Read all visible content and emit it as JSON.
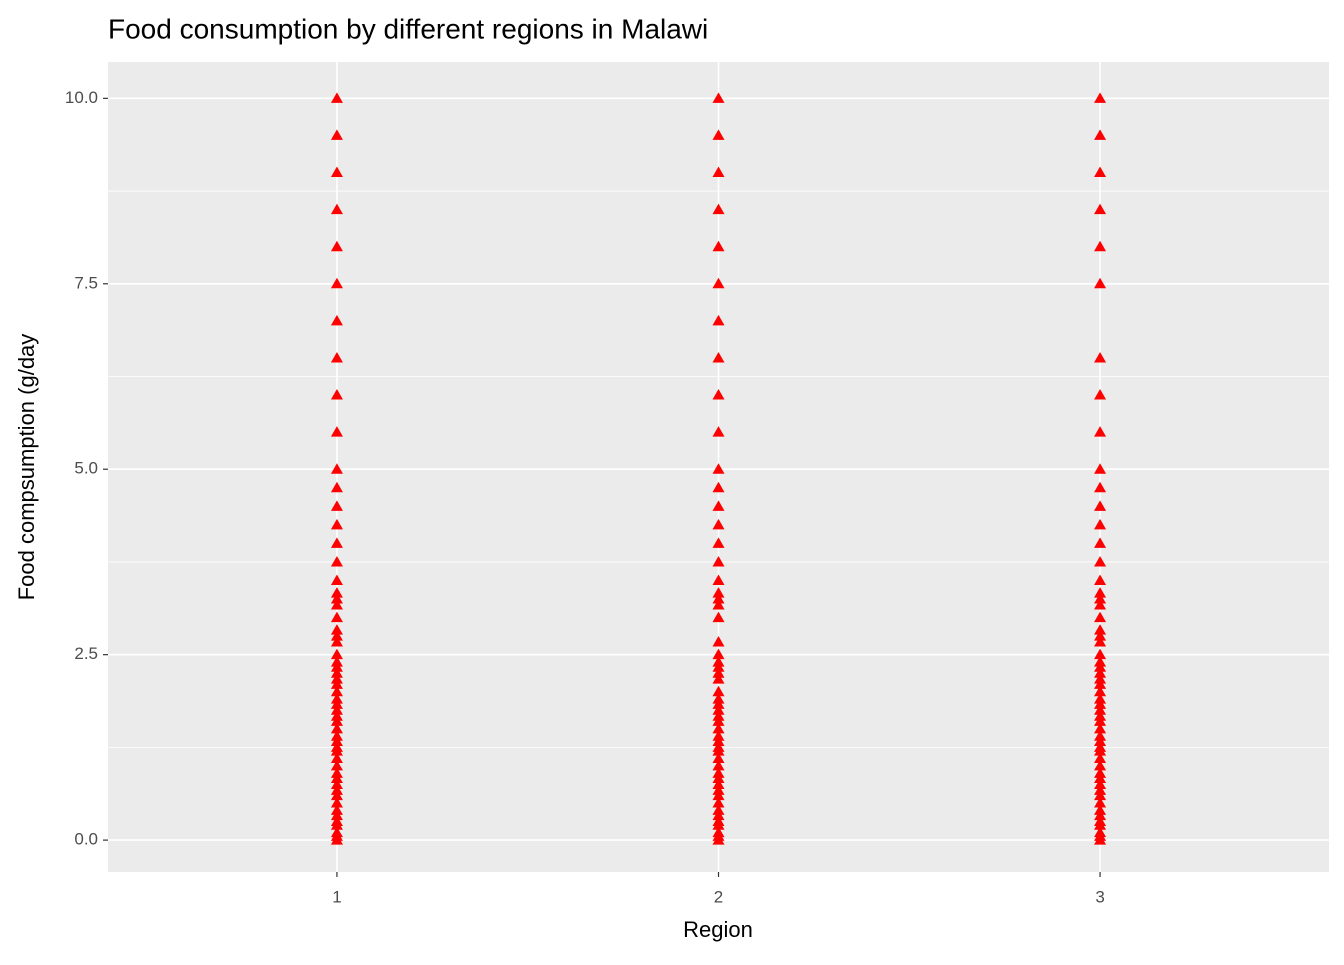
{
  "chart_data": {
    "type": "scatter",
    "title": "Food consumption by different regions in Malawi",
    "x_label": "Region",
    "y_label": "Food compsumption (g/day",
    "xlim": [
      0.4,
      3.6
    ],
    "xticks": [
      1,
      2,
      3
    ],
    "ylim": [
      -0.43,
      10.49
    ],
    "yticks": [
      {
        "value": 0,
        "label": "0.0"
      },
      {
        "value": 2.5,
        "label": "2.5"
      },
      {
        "value": 5,
        "label": "5.0"
      },
      {
        "value": 7.5,
        "label": "7.5"
      },
      {
        "value": 10,
        "label": "10.0"
      }
    ],
    "grid": true,
    "minor_grid": true,
    "marker": "triangle",
    "series": [
      {
        "color": "#ff0000",
        "x": [
          1,
          1,
          1,
          1,
          1,
          1,
          1,
          1,
          1,
          1,
          1,
          1,
          1,
          1,
          1,
          1,
          1,
          1,
          1,
          1,
          1,
          1,
          1,
          1,
          1,
          1,
          1,
          1,
          1,
          1,
          1,
          1,
          1,
          1,
          1,
          1,
          1,
          1,
          1,
          1,
          1,
          1,
          1,
          1,
          1,
          1,
          1,
          1,
          1,
          1,
          1,
          1,
          1,
          1,
          1,
          1
        ],
        "y": [
          10,
          9.5,
          9,
          8.5,
          8,
          7.5,
          7,
          6.5,
          6,
          5.5,
          5,
          4.75,
          4.5,
          4.25,
          4,
          3.75,
          3.5,
          3.33,
          3.25,
          3.17,
          3,
          2.83,
          2.75,
          2.67,
          2.5,
          2.4,
          2.33,
          2.25,
          2.17,
          2.1,
          2,
          1.9,
          1.83,
          1.75,
          1.67,
          1.6,
          1.5,
          1.4,
          1.33,
          1.25,
          1.2,
          1.1,
          1,
          0.9,
          0.83,
          0.75,
          0.67,
          0.6,
          0.5,
          0.4,
          0.33,
          0.25,
          0.2,
          0.1,
          0.05,
          0
        ]
      },
      {
        "color": "#ff0000",
        "x": [
          2,
          2,
          2,
          2,
          2,
          2,
          2,
          2,
          2,
          2,
          2,
          2,
          2,
          2,
          2,
          2,
          2,
          2,
          2,
          2,
          2,
          2,
          2,
          2,
          2,
          2,
          2,
          2,
          2,
          2,
          2,
          2,
          2,
          2,
          2,
          2,
          2,
          2,
          2,
          2,
          2,
          2,
          2,
          2,
          2,
          2,
          2,
          2,
          2,
          2,
          2,
          2,
          2
        ],
        "y": [
          10,
          9.5,
          9,
          8.5,
          8,
          7.5,
          7,
          6.5,
          6,
          5.5,
          5,
          4.75,
          4.5,
          4.25,
          4,
          3.75,
          3.5,
          3.33,
          3.25,
          3.17,
          3,
          2.67,
          2.5,
          2.4,
          2.33,
          2.25,
          2.17,
          2,
          1.9,
          1.83,
          1.75,
          1.67,
          1.6,
          1.5,
          1.4,
          1.33,
          1.25,
          1.2,
          1.1,
          1,
          0.9,
          0.83,
          0.75,
          0.67,
          0.6,
          0.5,
          0.4,
          0.33,
          0.25,
          0.2,
          0.1,
          0.05,
          0
        ]
      },
      {
        "color": "#ff0000",
        "x": [
          3,
          3,
          3,
          3,
          3,
          3,
          3,
          3,
          3,
          3,
          3,
          3,
          3,
          3,
          3,
          3,
          3,
          3,
          3,
          3,
          3,
          3,
          3,
          3,
          3,
          3,
          3,
          3,
          3,
          3,
          3,
          3,
          3,
          3,
          3,
          3,
          3,
          3,
          3,
          3,
          3,
          3,
          3,
          3,
          3,
          3,
          3,
          3,
          3,
          3,
          3,
          3,
          3,
          3,
          3
        ],
        "y": [
          10,
          9.5,
          9,
          8.5,
          8,
          7.5,
          6.5,
          6,
          5.5,
          5,
          4.75,
          4.5,
          4.25,
          4,
          3.75,
          3.5,
          3.33,
          3.25,
          3.17,
          3,
          2.83,
          2.75,
          2.67,
          2.5,
          2.4,
          2.33,
          2.25,
          2.17,
          2.1,
          2,
          1.9,
          1.83,
          1.75,
          1.67,
          1.6,
          1.5,
          1.4,
          1.33,
          1.25,
          1.2,
          1.1,
          1,
          0.9,
          0.83,
          0.75,
          0.67,
          0.6,
          0.5,
          0.4,
          0.33,
          0.25,
          0.2,
          0.1,
          0.05,
          0
        ]
      }
    ]
  }
}
